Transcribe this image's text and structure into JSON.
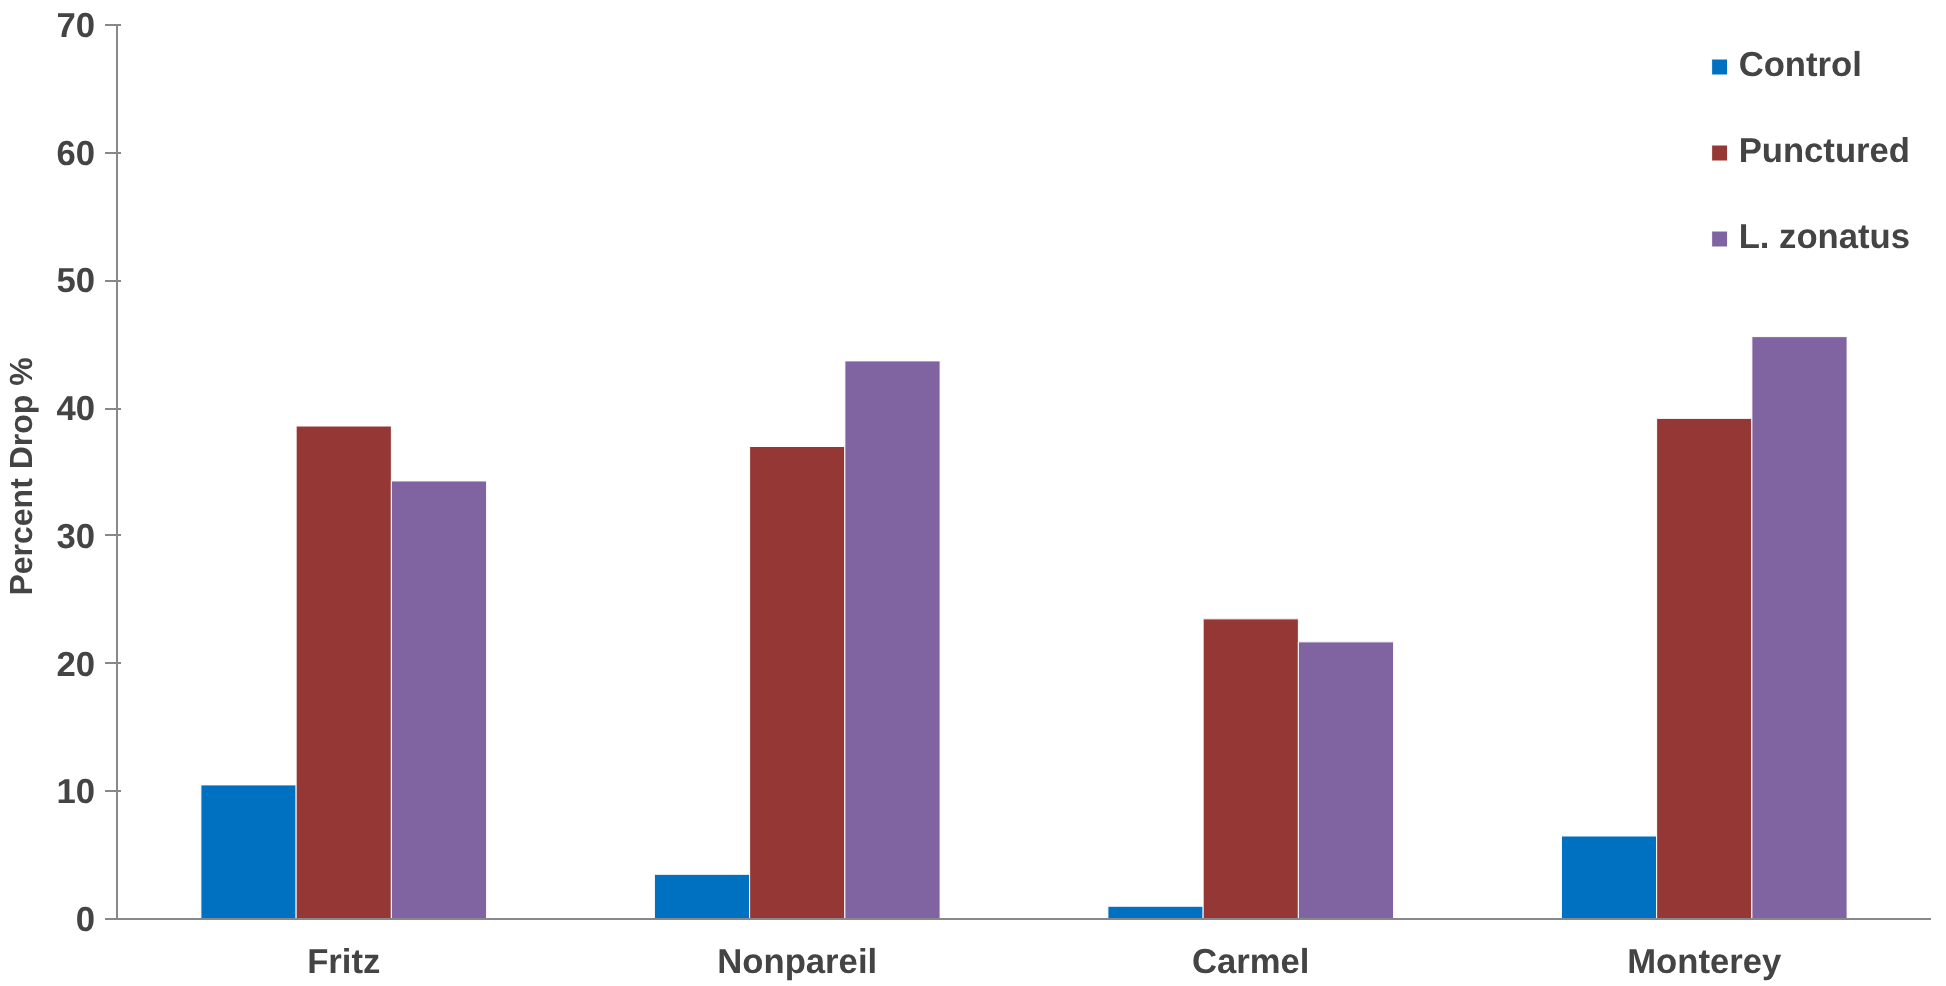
{
  "chart_data": {
    "type": "bar",
    "ylabel": "Percent  Drop %",
    "categories": [
      "Fritz",
      "Nonpareil",
      "Carmel",
      "Monterey"
    ],
    "series": [
      {
        "name": "Control",
        "color": "#0070c0",
        "values": [
          10.5,
          3.5,
          1.0,
          6.5
        ]
      },
      {
        "name": "Punctured",
        "color": "#953735",
        "values": [
          38.6,
          37.0,
          23.5,
          39.2
        ]
      },
      {
        "name": "L. zonatus",
        "color": "#8064a2",
        "values": [
          34.3,
          43.7,
          21.7,
          45.6
        ]
      }
    ],
    "ylim": [
      0,
      70
    ],
    "yticks": [
      0,
      10,
      20,
      30,
      40,
      50,
      60,
      70
    ],
    "grid": false,
    "legend": "top right"
  }
}
